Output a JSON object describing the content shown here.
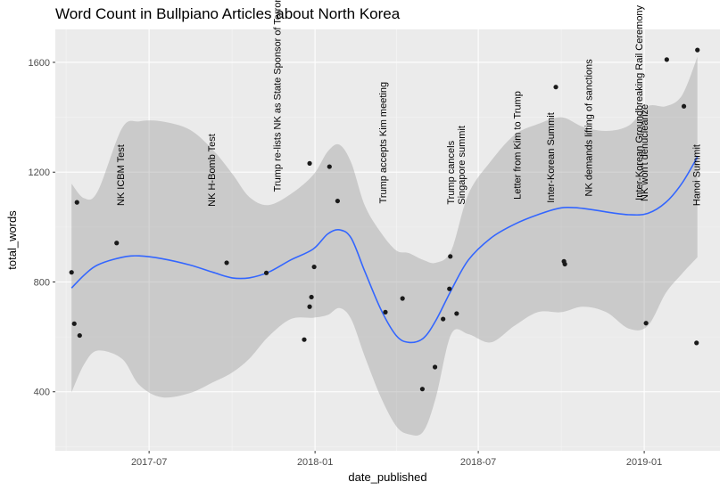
{
  "chart_data": {
    "type": "scatter",
    "title": "Word Count in Bullpiano Articles about North Korea",
    "xlabel": "date_published",
    "ylabel": "total_words",
    "x_range": [
      "2017-03-19",
      "2019-03-26"
    ],
    "ylim": [
      185,
      1720
    ],
    "x_ticks": [
      {
        "date": "2017-07-01",
        "label": "2017-07"
      },
      {
        "date": "2018-01-01",
        "label": "2018-01"
      },
      {
        "date": "2018-07-01",
        "label": "2018-07"
      },
      {
        "date": "2019-01-01",
        "label": "2019-01"
      }
    ],
    "y_ticks": [
      400,
      800,
      1200,
      1600
    ],
    "grid": true,
    "legend": "none",
    "colors": {
      "panel": "#EBEBEB",
      "grid_major": "#FFFFFF",
      "grid_minor": "#F5F5F5",
      "points": "#1A1A1A",
      "smooth_line": "#3366FF",
      "ribbon": "#999999"
    },
    "points": [
      {
        "date": "2017-04-06",
        "words": 835
      },
      {
        "date": "2017-04-09",
        "words": 648
      },
      {
        "date": "2017-04-12",
        "words": 1090
      },
      {
        "date": "2017-04-15",
        "words": 605
      },
      {
        "date": "2017-05-26",
        "words": 942
      },
      {
        "date": "2017-09-25",
        "words": 870
      },
      {
        "date": "2017-11-08",
        "words": 833
      },
      {
        "date": "2017-12-20",
        "words": 590
      },
      {
        "date": "2017-12-26",
        "words": 710
      },
      {
        "date": "2017-12-26",
        "words": 1232
      },
      {
        "date": "2017-12-28",
        "words": 745
      },
      {
        "date": "2017-12-31",
        "words": 855
      },
      {
        "date": "2018-01-17",
        "words": 1220
      },
      {
        "date": "2018-01-26",
        "words": 1095
      },
      {
        "date": "2018-03-20",
        "words": 690
      },
      {
        "date": "2018-04-08",
        "words": 740
      },
      {
        "date": "2018-04-30",
        "words": 410
      },
      {
        "date": "2018-05-14",
        "words": 490
      },
      {
        "date": "2018-05-23",
        "words": 665
      },
      {
        "date": "2018-05-30",
        "words": 775
      },
      {
        "date": "2018-05-31",
        "words": 893
      },
      {
        "date": "2018-06-07",
        "words": 685
      },
      {
        "date": "2018-09-25",
        "words": 1510
      },
      {
        "date": "2018-10-04",
        "words": 875
      },
      {
        "date": "2018-10-05",
        "words": 865
      },
      {
        "date": "2019-01-03",
        "words": 650
      },
      {
        "date": "2019-01-26",
        "words": 1610
      },
      {
        "date": "2019-02-14",
        "words": 1440
      },
      {
        "date": "2019-02-28",
        "words": 578
      },
      {
        "date": "2019-03-01",
        "words": 1645
      }
    ],
    "smooth": [
      {
        "date": "2017-04-06",
        "fit": 778,
        "lower": 398,
        "upper": 1158
      },
      {
        "date": "2017-04-20",
        "fit": 825,
        "lower": 500,
        "upper": 1105
      },
      {
        "date": "2017-05-05",
        "fit": 862,
        "lower": 550,
        "upper": 1130
      },
      {
        "date": "2017-06-01",
        "fit": 890,
        "lower": 520,
        "upper": 1360
      },
      {
        "date": "2017-06-20",
        "fit": 895,
        "lower": 425,
        "upper": 1385
      },
      {
        "date": "2017-07-15",
        "fit": 885,
        "lower": 380,
        "upper": 1385
      },
      {
        "date": "2017-08-15",
        "fit": 862,
        "lower": 395,
        "upper": 1355
      },
      {
        "date": "2017-09-10",
        "fit": 835,
        "lower": 435,
        "upper": 1280
      },
      {
        "date": "2017-10-01",
        "fit": 815,
        "lower": 470,
        "upper": 1195
      },
      {
        "date": "2017-10-20",
        "fit": 815,
        "lower": 520,
        "upper": 1110
      },
      {
        "date": "2017-11-10",
        "fit": 835,
        "lower": 600,
        "upper": 1080
      },
      {
        "date": "2017-12-05",
        "fit": 880,
        "lower": 665,
        "upper": 1120
      },
      {
        "date": "2017-12-30",
        "fit": 920,
        "lower": 670,
        "upper": 1190
      },
      {
        "date": "2018-01-15",
        "fit": 975,
        "lower": 680,
        "upper": 1275
      },
      {
        "date": "2018-01-28",
        "fit": 990,
        "lower": 705,
        "upper": 1300
      },
      {
        "date": "2018-02-10",
        "fit": 960,
        "lower": 665,
        "upper": 1235
      },
      {
        "date": "2018-02-25",
        "fit": 840,
        "lower": 530,
        "upper": 1080
      },
      {
        "date": "2018-03-15",
        "fit": 700,
        "lower": 380,
        "upper": 980
      },
      {
        "date": "2018-04-01",
        "fit": 605,
        "lower": 275,
        "upper": 915
      },
      {
        "date": "2018-04-15",
        "fit": 580,
        "lower": 245,
        "upper": 905
      },
      {
        "date": "2018-05-01",
        "fit": 595,
        "lower": 255,
        "upper": 880
      },
      {
        "date": "2018-05-15",
        "fit": 660,
        "lower": 380,
        "upper": 870
      },
      {
        "date": "2018-06-01",
        "fit": 770,
        "lower": 610,
        "upper": 915
      },
      {
        "date": "2018-06-20",
        "fit": 880,
        "lower": 610,
        "upper": 1120
      },
      {
        "date": "2018-07-15",
        "fit": 960,
        "lower": 580,
        "upper": 1240
      },
      {
        "date": "2018-08-10",
        "fit": 1010,
        "lower": 640,
        "upper": 1335
      },
      {
        "date": "2018-09-05",
        "fit": 1045,
        "lower": 690,
        "upper": 1375
      },
      {
        "date": "2018-10-01",
        "fit": 1070,
        "lower": 690,
        "upper": 1400
      },
      {
        "date": "2018-10-25",
        "fit": 1068,
        "lower": 710,
        "upper": 1365
      },
      {
        "date": "2018-11-20",
        "fit": 1055,
        "lower": 690,
        "upper": 1350
      },
      {
        "date": "2018-12-15",
        "fit": 1045,
        "lower": 630,
        "upper": 1370
      },
      {
        "date": "2019-01-05",
        "fit": 1050,
        "lower": 640,
        "upper": 1440
      },
      {
        "date": "2019-01-25",
        "fit": 1090,
        "lower": 760,
        "upper": 1440
      },
      {
        "date": "2019-02-12",
        "fit": 1160,
        "lower": 830,
        "upper": 1480
      },
      {
        "date": "2019-03-01",
        "fit": 1255,
        "lower": 890,
        "upper": 1620
      }
    ],
    "events": [
      {
        "date": "2017-05-30",
        "label": "NK ICBM Test"
      },
      {
        "date": "2017-09-08",
        "label": "NK H-Bomb Test"
      },
      {
        "date": "2017-11-20",
        "label": "Trump re-lists NK as State Sponsor of Terrorism"
      },
      {
        "date": "2018-03-17",
        "label": "Trump accepts Kim meeting"
      },
      {
        "date": "2018-05-31",
        "label": "Trump cancels"
      },
      {
        "date": "2018-06-12",
        "label": "Singapore summit"
      },
      {
        "date": "2018-08-13",
        "label": "Letter from Kim to Trump"
      },
      {
        "date": "2018-09-19",
        "label": "Inter-Korean Summit"
      },
      {
        "date": "2018-10-31",
        "label": "NK demands lifting of sanctions"
      },
      {
        "date": "2018-12-26",
        "label": "Inter-Korean Groundbreaking Rail Ceremony"
      },
      {
        "date": "2019-01-01",
        "label": "NK won't denuclearize"
      },
      {
        "date": "2019-02-28",
        "label": "Hanoi Summit"
      }
    ]
  }
}
